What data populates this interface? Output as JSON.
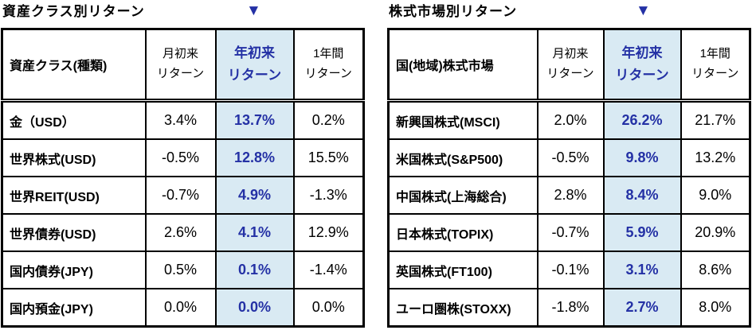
{
  "colors": {
    "accent_navy": "#2431A5",
    "highlight_bg": "#D9EAF3",
    "border": "#000000",
    "title": "#000000"
  },
  "tables": [
    {
      "title": "資産クラス別リターン",
      "marker": "▼",
      "name_header": "資産クラス(種類)",
      "col_headers": [
        {
          "line1": "月初来",
          "line2": "リターン"
        },
        {
          "line1": "年初来",
          "line2": "リターン"
        },
        {
          "line1": "1年間",
          "line2": "リターン"
        }
      ],
      "rows": [
        {
          "name": "金（USD）",
          "mtd": "3.4%",
          "ytd": "13.7%",
          "y1": "0.2%"
        },
        {
          "name": "世界株式(USD)",
          "mtd": "-0.5%",
          "ytd": "12.8%",
          "y1": "15.5%"
        },
        {
          "name": "世界REIT(USD)",
          "mtd": "-0.7%",
          "ytd": "4.9%",
          "y1": "-1.3%"
        },
        {
          "name": "世界債券(USD)",
          "mtd": "2.6%",
          "ytd": "4.1%",
          "y1": "12.9%"
        },
        {
          "name": "国内債券(JPY)",
          "mtd": "0.5%",
          "ytd": "0.1%",
          "y1": "-1.4%"
        },
        {
          "name": "国内預金(JPY)",
          "mtd": "0.0%",
          "ytd": "0.0%",
          "y1": "0.0%"
        }
      ]
    },
    {
      "title": "株式市場別リターン",
      "marker": "▼",
      "name_header": "国(地域)株式市場",
      "col_headers": [
        {
          "line1": "月初来",
          "line2": "リターン"
        },
        {
          "line1": "年初来",
          "line2": "リターン"
        },
        {
          "line1": "1年間",
          "line2": "リターン"
        }
      ],
      "rows": [
        {
          "name": "新興国株式(MSCI)",
          "mtd": "2.0%",
          "ytd": "26.2%",
          "y1": "21.7%"
        },
        {
          "name": "米国株式(S&P500)",
          "mtd": "-0.5%",
          "ytd": "9.8%",
          "y1": "13.2%"
        },
        {
          "name": "中国株式(上海総合)",
          "mtd": "2.8%",
          "ytd": "8.4%",
          "y1": "9.0%"
        },
        {
          "name": "日本株式(TOPIX)",
          "mtd": "-0.7%",
          "ytd": "5.9%",
          "y1": "20.9%"
        },
        {
          "name": "英国株式(FT100)",
          "mtd": "-0.1%",
          "ytd": "3.1%",
          "y1": "8.6%"
        },
        {
          "name": "ユーロ圏株(STOXX)",
          "mtd": "-1.8%",
          "ytd": "2.7%",
          "y1": "8.0%"
        }
      ]
    }
  ]
}
